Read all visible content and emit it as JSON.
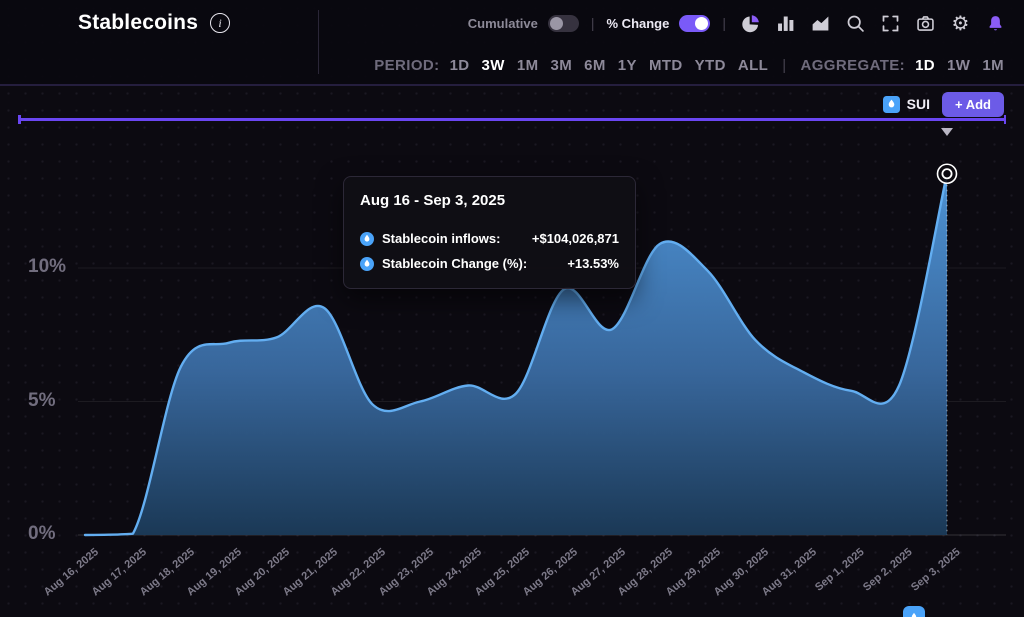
{
  "header": {
    "title": "Stablecoins",
    "cumulative_label": "Cumulative",
    "cumulative_on": false,
    "pct_change_label": "% Change",
    "pct_change_on": true,
    "icons": [
      "pie-chart",
      "bar-chart",
      "area-chart",
      "search",
      "fullscreen",
      "camera",
      "settings-gear",
      "notifications-bell"
    ]
  },
  "period_bar": {
    "period_label": "PERIOD:",
    "period_options": [
      "1D",
      "3W",
      "1M",
      "3M",
      "6M",
      "1Y",
      "MTD",
      "YTD",
      "ALL"
    ],
    "period_selected": "3W",
    "aggregate_label": "AGGREGATE:",
    "aggregate_options": [
      "1D",
      "1W",
      "1M"
    ],
    "aggregate_selected": "1D"
  },
  "legend": {
    "series_label": "SUI",
    "add_button_label": "+ Add"
  },
  "tooltip": {
    "title": "Aug 16 - Sep 3, 2025",
    "rows": [
      {
        "icon": "sui-token-icon",
        "label": "Stablecoin inflows:",
        "value": "+$104,026,871"
      },
      {
        "icon": "sui-token-icon",
        "label": "Stablecoin Change (%):",
        "value": "+13.53%"
      }
    ]
  },
  "colors": {
    "background": "#0c0a11",
    "accent_purple": "#6a46f2",
    "toggle_on_purple": "#7a5af8",
    "add_button_purple": "#6c5be7",
    "series_blue_stroke": "#63aef1",
    "area_gradient_top": "#4f96da",
    "area_gradient_mid": "#39699f",
    "area_gradient_bottom": "#1b3a58",
    "sui_blue": "#4aa3f9",
    "muted_text": "#8d8a98"
  },
  "chart_data": {
    "type": "area",
    "series_name": "SUI Stablecoin Change (%)",
    "x": [
      "Aug 16, 2025",
      "Aug 17, 2025",
      "Aug 18, 2025",
      "Aug 19, 2025",
      "Aug 20, 2025",
      "Aug 21, 2025",
      "Aug 22, 2025",
      "Aug 23, 2025",
      "Aug 24, 2025",
      "Aug 25, 2025",
      "Aug 26, 2025",
      "Aug 27, 2025",
      "Aug 28, 2025",
      "Aug 29, 2025",
      "Aug 30, 2025",
      "Aug 31, 2025",
      "Sep 1, 2025",
      "Sep 2, 2025",
      "Sep 3, 2025"
    ],
    "values": [
      0,
      0.05,
      6.3,
      7.2,
      7.4,
      8.5,
      4.9,
      5.0,
      5.6,
      5.3,
      9.2,
      7.7,
      10.9,
      9.9,
      7.3,
      6.1,
      5.4,
      5.6,
      13.53
    ],
    "unit": "%",
    "yticks": [
      {
        "label": "0%",
        "value": 0
      },
      {
        "label": "5%",
        "value": 5
      },
      {
        "label": "10%",
        "value": 10
      }
    ],
    "ylim": [
      0,
      14.5
    ],
    "grid": "horizontal-faint",
    "legend_position": "top-right",
    "highlighted_point": {
      "x": "Sep 3, 2025",
      "value": 13.53
    },
    "annotation_inflows": "+$104,026,871"
  }
}
